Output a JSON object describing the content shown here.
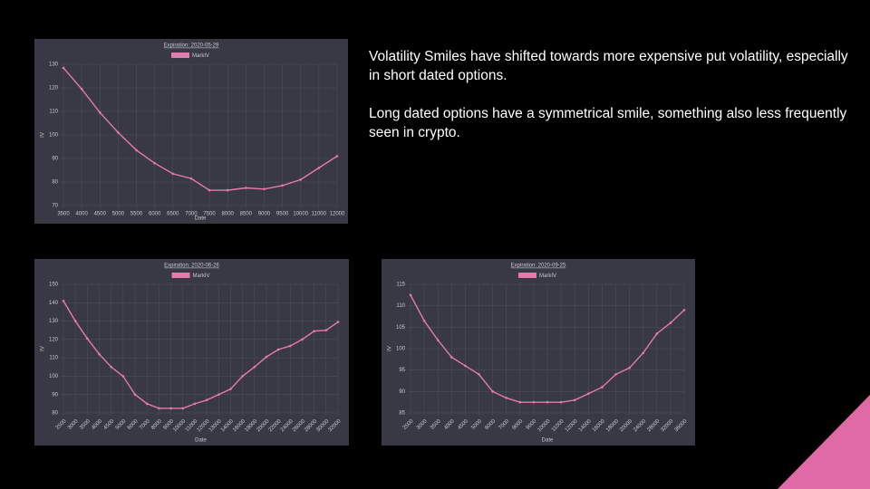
{
  "text": [
    "Volatility Smiles have shifted towards more expensive put volatility, especially in short dated options.",
    "Long dated options have a symmetrical smile, something also less frequently seen in crypto."
  ],
  "chart_data": [
    {
      "type": "line",
      "title": "Expiration: 2020-05-29",
      "x_label": "Date",
      "y_label": "IV",
      "categories": [
        "3500",
        "4000",
        "4500",
        "5000",
        "5500",
        "6000",
        "6500",
        "7000",
        "7500",
        "8000",
        "8500",
        "9000",
        "9500",
        "10000",
        "11000",
        "12000"
      ],
      "series": [
        {
          "name": "MarkIV",
          "color": "#e879ad",
          "values": [
            128.5,
            119.5,
            109.5,
            101,
            93.5,
            88,
            83.5,
            81.5,
            76.5,
            76.5,
            77.5,
            77,
            78.5,
            81,
            86,
            91
          ]
        }
      ],
      "ylim": [
        70,
        130
      ],
      "yticks": [
        70,
        80,
        90,
        100,
        110,
        120,
        130
      ],
      "grid": true
    },
    {
      "type": "line",
      "title": "Expiration: 2020-06-26",
      "x_label": "Date",
      "y_label": "IV",
      "categories": [
        "2500",
        "3000",
        "3500",
        "4000",
        "4500",
        "5000",
        "6000",
        "7000",
        "8000",
        "9000",
        "10000",
        "11000",
        "12000",
        "13000",
        "14000",
        "16000",
        "18000",
        "20000",
        "22000",
        "24000",
        "26000",
        "28000",
        "30000",
        "32000"
      ],
      "series": [
        {
          "name": "MarkIV",
          "color": "#e879ad",
          "values": [
            141,
            130,
            120.5,
            112,
            105,
            100,
            90,
            85,
            82.5,
            82.5,
            82.5,
            85,
            87,
            90,
            93,
            100,
            105,
            110.5,
            114.5,
            116.5,
            120,
            124.5,
            125,
            129.5
          ]
        }
      ],
      "ylim": [
        80,
        150
      ],
      "yticks": [
        80,
        90,
        100,
        110,
        120,
        130,
        140,
        150
      ],
      "grid": true
    },
    {
      "type": "line",
      "title": "Expiration: 2020-09-25",
      "x_label": "Date",
      "y_label": "IV",
      "categories": [
        "2500",
        "3000",
        "3500",
        "4000",
        "4500",
        "5000",
        "6000",
        "7000",
        "8000",
        "9000",
        "10000",
        "11000",
        "12000",
        "14000",
        "16000",
        "18000",
        "20000",
        "24000",
        "28000",
        "32000",
        "36000"
      ],
      "series": [
        {
          "name": "MarkIV",
          "color": "#e879ad",
          "values": [
            112.5,
            106.5,
            102,
            98,
            96,
            94,
            90,
            88.5,
            87.5,
            87.5,
            87.5,
            87.5,
            88,
            89.5,
            91,
            94,
            95.5,
            99,
            103.5,
            106,
            109
          ]
        }
      ],
      "ylim": [
        85,
        115
      ],
      "yticks": [
        85,
        90,
        95,
        100,
        105,
        110,
        115
      ],
      "grid": true
    }
  ]
}
